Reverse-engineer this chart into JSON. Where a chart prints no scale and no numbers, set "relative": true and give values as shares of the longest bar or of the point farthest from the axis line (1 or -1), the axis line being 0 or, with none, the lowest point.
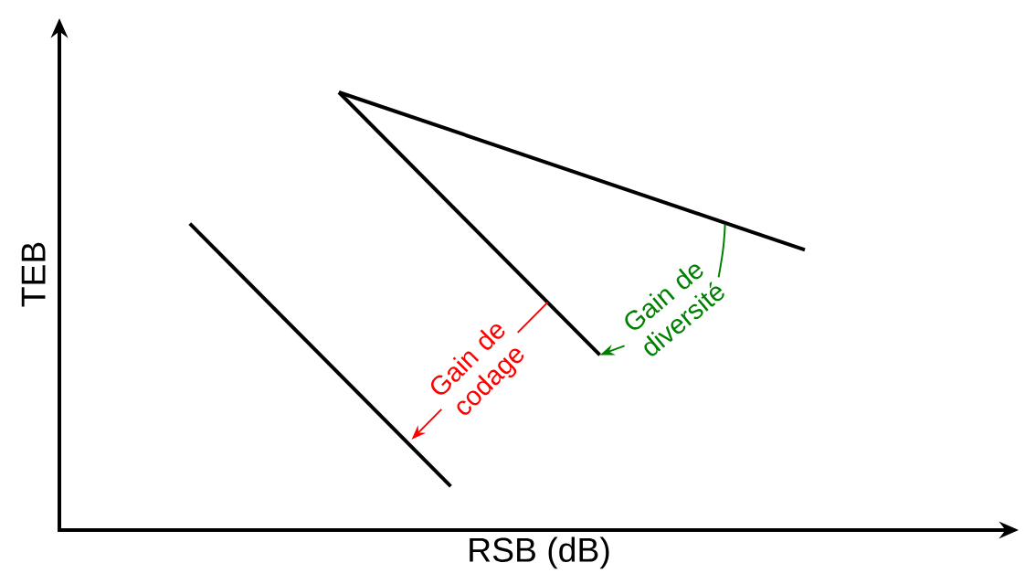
{
  "chart_data": {
    "type": "line",
    "relative": true,
    "xlabel": "RSB (dB)",
    "ylabel": "TEB",
    "categories": [
      null,
      null,
      null,
      null,
      null,
      null,
      null,
      null,
      null,
      null,
      null,
      null,
      null,
      null,
      null,
      null,
      null,
      null,
      null,
      null,
      null,
      null,
      null,
      null,
      null,
      null,
      null,
      null,
      null,
      null,
      null,
      null,
      null,
      null,
      null,
      null,
      null,
      null,
      null,
      null,
      null,
      null,
      null,
      null,
      null,
      null,
      null,
      null,
      null,
      null,
      null,
      null
    ],
    "series": [
      {
        "color": "#000000",
        "values": [
          null,
          null,
          null,
          null,
          null,
          null,
          null,
          0.7,
          null,
          null,
          null,
          null,
          null,
          null,
          null,
          null,
          null,
          null,
          null,
          null,
          null,
          0.1,
          null,
          null,
          null,
          null,
          null,
          null,
          null,
          null,
          null,
          null,
          null,
          null,
          null,
          null,
          null,
          null,
          null,
          null,
          null,
          null,
          null,
          null,
          null,
          null,
          null,
          null,
          null,
          null,
          null,
          null
        ]
      },
      {
        "color": "#000000",
        "values": [
          null,
          null,
          null,
          null,
          null,
          null,
          null,
          null,
          null,
          null,
          null,
          null,
          null,
          null,
          null,
          1,
          null,
          null,
          null,
          null,
          null,
          null,
          null,
          null,
          null,
          null,
          null,
          null,
          null,
          0.4,
          null,
          null,
          null,
          null,
          null,
          null,
          null,
          null,
          null,
          null,
          null,
          null,
          null,
          null,
          null,
          null,
          null,
          null,
          null,
          null,
          null,
          null
        ]
      },
      {
        "color": "#000000",
        "values": [
          null,
          null,
          null,
          null,
          null,
          null,
          null,
          null,
          null,
          null,
          null,
          null,
          null,
          null,
          null,
          1,
          null,
          null,
          null,
          null,
          null,
          null,
          null,
          null,
          null,
          null,
          null,
          null,
          null,
          null,
          null,
          null,
          null,
          null,
          null,
          null,
          null,
          null,
          null,
          null,
          0.64,
          null,
          null,
          null,
          null,
          null,
          null,
          null,
          null,
          null,
          null,
          null
        ]
      }
    ],
    "annotations": [
      "Gain de codage",
      "Gain de diversité"
    ]
  }
}
